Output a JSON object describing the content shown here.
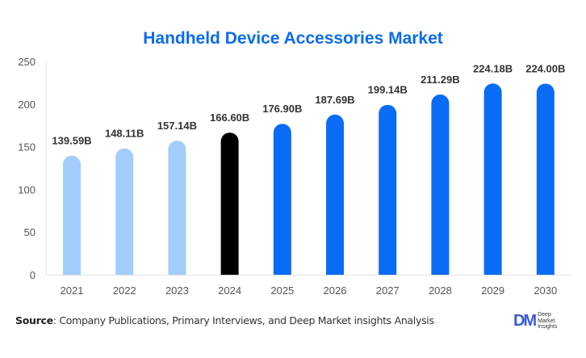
{
  "chart_data": {
    "type": "bar",
    "title": "Handheld Device Accessories Market",
    "xlabel": "",
    "ylabel": "",
    "categories": [
      "2021",
      "2022",
      "2023",
      "2024",
      "2025",
      "2026",
      "2027",
      "2028",
      "2029",
      "2030"
    ],
    "values": [
      139.59,
      148.11,
      157.14,
      166.6,
      176.9,
      187.69,
      199.14,
      211.29,
      224.18,
      224.0
    ],
    "data_labels": [
      "139.59B",
      "148.11B",
      "157.14B",
      "166.60B",
      "176.90B",
      "187.69B",
      "199.14B",
      "211.29B",
      "224.18B",
      "224.00B"
    ],
    "bar_colors": [
      "#a3cdfb",
      "#a3cdfb",
      "#a3cdfb",
      "#000000",
      "#0a6cf5",
      "#0a6cf5",
      "#0a6cf5",
      "#0a6cf5",
      "#0a6cf5",
      "#0a6cf5"
    ],
    "ylim": [
      0,
      250
    ],
    "yticks": [
      0,
      50,
      100,
      150,
      200,
      250
    ],
    "grid": false,
    "legend": "none"
  },
  "colors": {
    "title": "#0a6cf0",
    "historical": "#a3cdfb",
    "current": "#000000",
    "forecast": "#0a6cf5"
  },
  "footer": {
    "source_label": "Source",
    "source_text": ": Company Publications, Primary Interviews, and Deep Market insights Analysis"
  },
  "logo": {
    "mark": "DM",
    "line1": "Deep",
    "line2": "Market",
    "line3": "Insights"
  }
}
